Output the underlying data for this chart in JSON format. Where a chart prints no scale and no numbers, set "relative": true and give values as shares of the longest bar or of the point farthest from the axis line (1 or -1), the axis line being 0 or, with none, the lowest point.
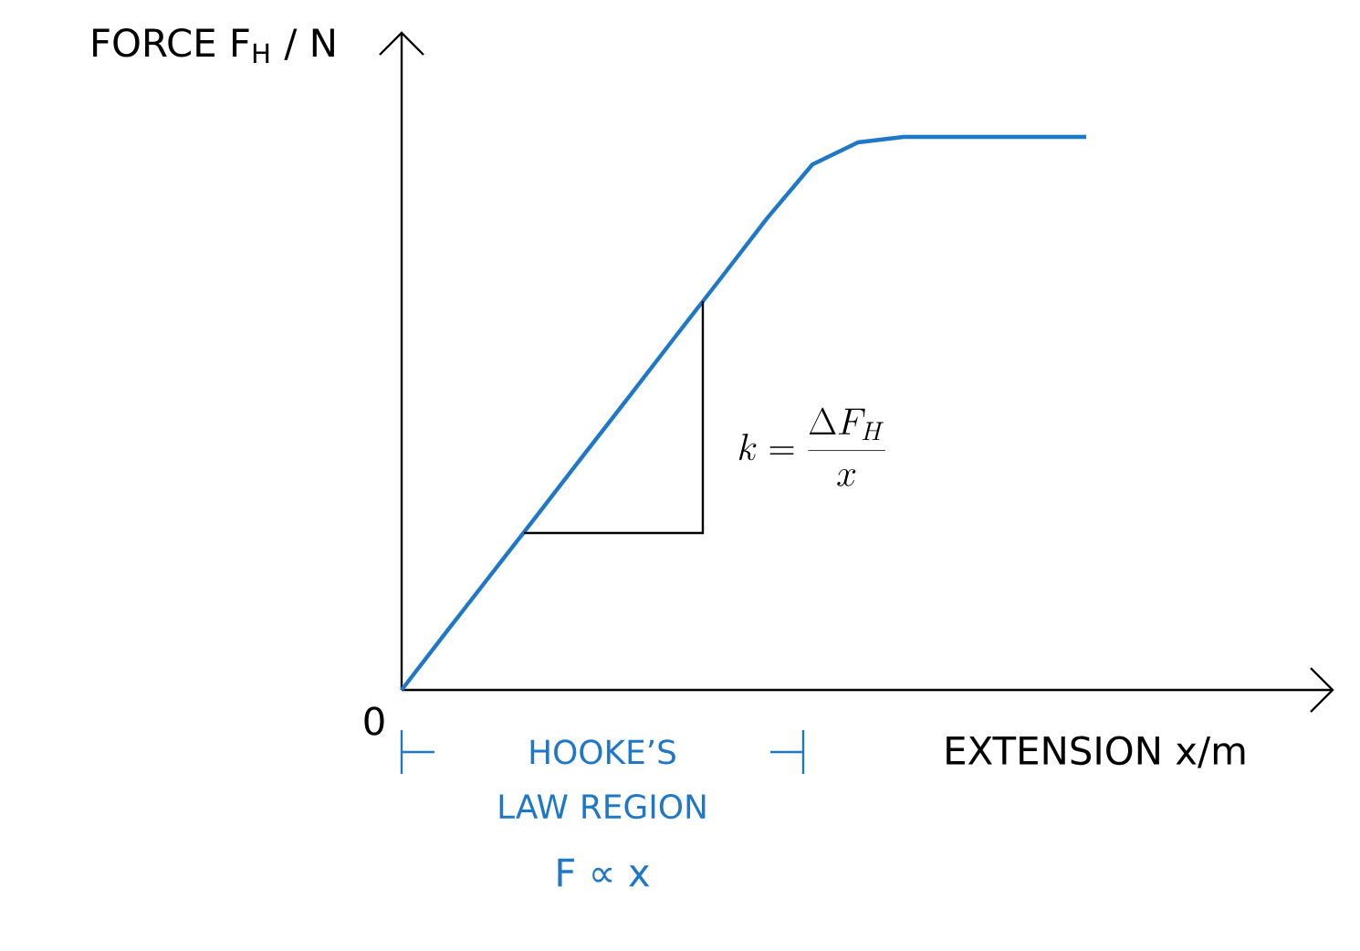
{
  "chart_data": {
    "type": "line",
    "relative": true,
    "xlabel": "EXTENSION  x/m",
    "ylabel": "FORCE F$_{H}$ / N",
    "categories": [
      null,
      null,
      null,
      null,
      null,
      null,
      null,
      null,
      null,
      null,
      null,
      null,
      null,
      null,
      null,
      null
    ],
    "series": [
      {
        "color": "#1f77c8",
        "values": [
          0,
          0.107,
          0.213,
          0.319,
          0.426,
          0.532,
          0.639,
          0.745,
          0.852,
          0.95,
          0.99,
          1,
          1,
          1,
          1,
          1
        ]
      }
    ],
    "annotations": [
      "0",
      "k = \\frac{\\Delta F_{H}}{x}",
      "HOOKE’S LAW REGION",
      "F ∝ x"
    ]
  }
}
